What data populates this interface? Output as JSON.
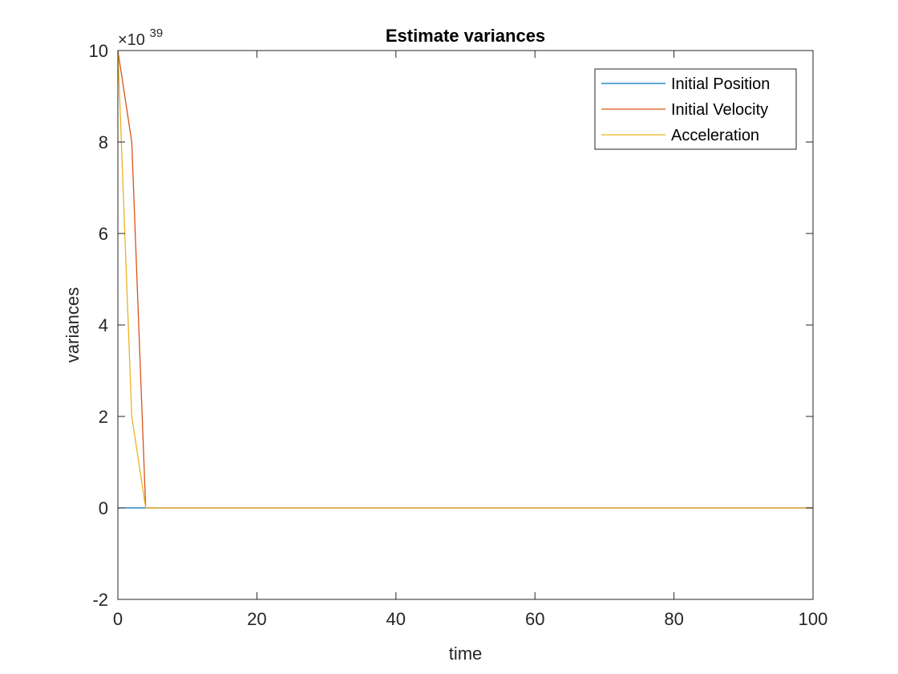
{
  "chart_data": {
    "type": "line",
    "title": "Estimate variances",
    "xlabel": "time",
    "ylabel": "variances",
    "xlim": [
      0,
      100
    ],
    "ylim": [
      -2,
      10
    ],
    "x_ticks": [
      0,
      20,
      40,
      60,
      80,
      100
    ],
    "y_ticks": [
      -2,
      0,
      2,
      4,
      6,
      8,
      10
    ],
    "x_tick_labels": [
      "0",
      "20",
      "40",
      "60",
      "80",
      "100"
    ],
    "y_tick_labels": [
      "-2",
      "0",
      "2",
      "4",
      "6",
      "8",
      "10"
    ],
    "y_exponent_base": "×10",
    "y_exponent_power": "39",
    "grid": false,
    "legend_position": "top-right",
    "series": [
      {
        "name": "Initial Position",
        "color": "#0072BD",
        "points": [
          [
            0,
            0
          ],
          [
            2,
            0
          ],
          [
            4,
            0
          ],
          [
            100,
            0
          ]
        ]
      },
      {
        "name": "Initial Velocity",
        "color": "#D95319",
        "points": [
          [
            0,
            10
          ],
          [
            2,
            8
          ],
          [
            4,
            0
          ],
          [
            100,
            0
          ]
        ]
      },
      {
        "name": "Acceleration",
        "color": "#EDB120",
        "points": [
          [
            0,
            10
          ],
          [
            2,
            2
          ],
          [
            4,
            0
          ],
          [
            100,
            0
          ]
        ]
      }
    ]
  }
}
